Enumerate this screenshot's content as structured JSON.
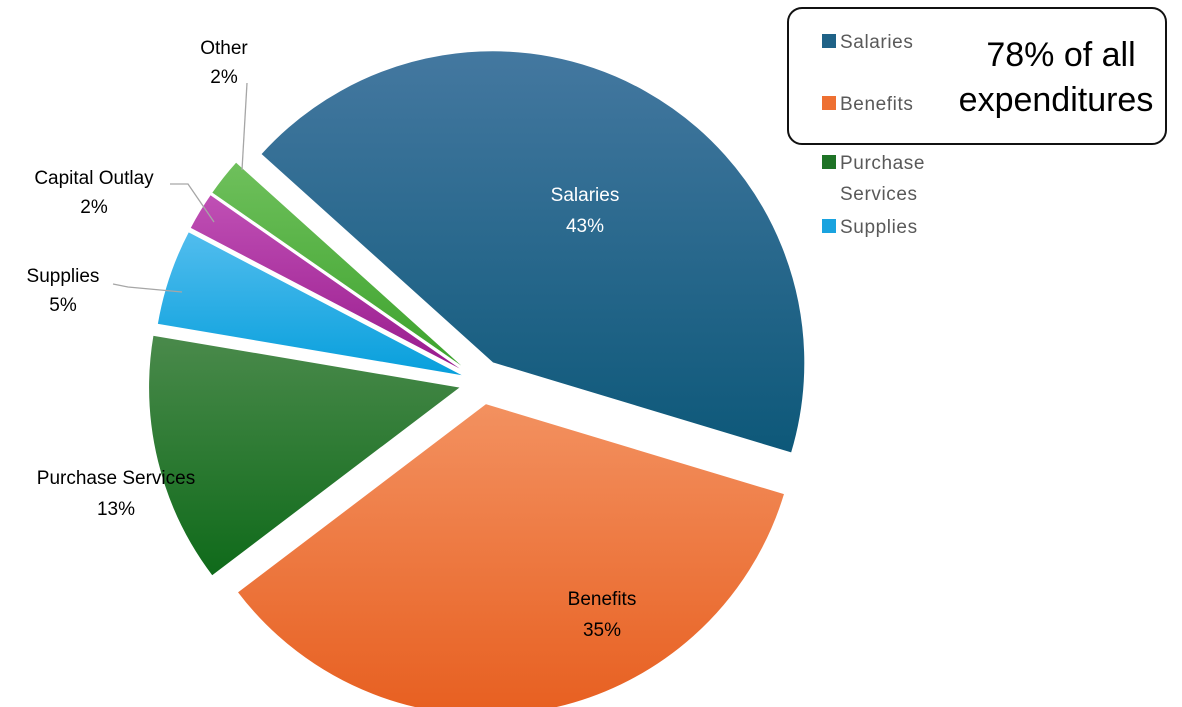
{
  "chart_data": {
    "type": "pie",
    "title": "",
    "exploded": true,
    "slices": [
      {
        "name": "Salaries",
        "value": 43,
        "label": "43%",
        "color": "#1f6287"
      },
      {
        "name": "Benefits",
        "value": 35,
        "label": "35%",
        "color": "#ee7032"
      },
      {
        "name": "Purchase Services",
        "value": 13,
        "label": "13%",
        "color": "#1e7326"
      },
      {
        "name": "Supplies",
        "value": 5,
        "label": "5%",
        "color": "#19a3df"
      },
      {
        "name": "Capital Outlay",
        "value": 2,
        "label": "2%",
        "color": "#a8209b"
      },
      {
        "name": "Other",
        "value": 2,
        "label": "2%",
        "color": "#4eab3c"
      }
    ],
    "legend": {
      "placement": "top-right",
      "entries": [
        {
          "name": "Salaries",
          "color": "#1f6287",
          "lines": [
            "Salaries"
          ]
        },
        {
          "name": "Benefits",
          "color": "#ee7032",
          "lines": [
            "Benefits"
          ]
        },
        {
          "name": "Purchase Services",
          "color": "#1e7326",
          "lines": [
            "Purchase",
            "Services"
          ]
        },
        {
          "name": "Supplies",
          "color": "#19a3df",
          "lines": [
            "Supplies"
          ]
        }
      ]
    },
    "callout": {
      "lines": [
        "78% of all",
        "expenditures"
      ]
    }
  }
}
